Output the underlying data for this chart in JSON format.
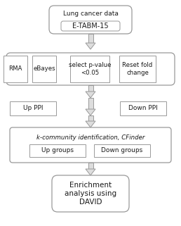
{
  "bg_color": "#ffffff",
  "text_color": "#1a1a1a",
  "box_edge_color": "#999999",
  "arrow_fill": "#dddddd",
  "arrow_edge": "#999999",
  "box1_label": "Lung cancer data",
  "box1_inner": "E-TABM-15",
  "box2_items": [
    "RMA",
    "eBayes",
    "select p-value\n<0.05",
    "Reset fold\nchange"
  ],
  "box3_left": "Up PPI",
  "box3_right": "Down PPI",
  "box4_label": "k-community identification, CFinder",
  "box4_left": "Up groups",
  "box4_right": "Down groups",
  "box5_text": "Enrichment\nanalysis using\nDAVID"
}
